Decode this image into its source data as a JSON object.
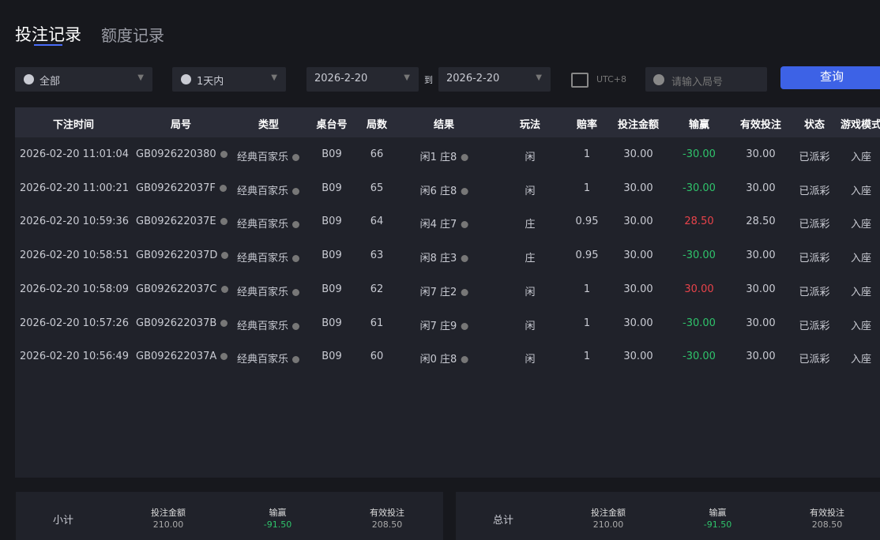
{
  "tabs": [
    "投注记录",
    "额度记录"
  ],
  "filters": {
    "type": "全部",
    "period": "1天内",
    "date_from": "2026-2-20",
    "to": "到",
    "date_to": "2026-2-20",
    "timezone": "UTC+8",
    "round_placeholder": "请输入局号",
    "query": "查询"
  },
  "table": {
    "columns": [
      "下注时间",
      "局号",
      "类型",
      "桌台号",
      "局数",
      "结果",
      "玩法",
      "赔率",
      "投注金额",
      "输赢",
      "有效投注",
      "状态",
      "游戏模式"
    ],
    "rows": [
      [
        "2026-02-20 11:01:04",
        "GB0926220380",
        "经典百家乐",
        "B09",
        "66",
        "闲1 庄8",
        "闲",
        "1",
        "30.00",
        "-30.00",
        "30.00",
        "已派彩",
        "入座"
      ],
      [
        "2026-02-20 11:00:21",
        "GB092622037F",
        "经典百家乐",
        "B09",
        "65",
        "闲6 庄8",
        "闲",
        "1",
        "30.00",
        "-30.00",
        "30.00",
        "已派彩",
        "入座"
      ],
      [
        "2026-02-20 10:59:36",
        "GB092622037E",
        "经典百家乐",
        "B09",
        "64",
        "闲4 庄7",
        "庄",
        "0.95",
        "30.00",
        "28.50",
        "28.50",
        "已派彩",
        "入座"
      ],
      [
        "2026-02-20 10:58:51",
        "GB092622037D",
        "经典百家乐",
        "B09",
        "63",
        "闲8 庄3",
        "庄",
        "0.95",
        "30.00",
        "-30.00",
        "30.00",
        "已派彩",
        "入座"
      ],
      [
        "2026-02-20 10:58:09",
        "GB092622037C",
        "经典百家乐",
        "B09",
        "62",
        "闲7 庄2",
        "闲",
        "1",
        "30.00",
        "30.00",
        "30.00",
        "已派彩",
        "入座"
      ],
      [
        "2026-02-20 10:57:26",
        "GB092622037B",
        "经典百家乐",
        "B09",
        "61",
        "闲7 庄9",
        "闲",
        "1",
        "30.00",
        "-30.00",
        "30.00",
        "已派彩",
        "入座"
      ],
      [
        "2026-02-20 10:56:49",
        "GB092622037A",
        "经典百家乐",
        "B09",
        "60",
        "闲0 庄8",
        "闲",
        "1",
        "30.00",
        "-30.00",
        "30.00",
        "已派彩",
        "入座"
      ]
    ]
  },
  "summary": [
    {
      "label": "小计",
      "items": [
        {
          "label": "投注金额",
          "value": "210.00"
        },
        {
          "label": "输赢",
          "value": "-91.50"
        },
        {
          "label": "有效投注",
          "value": "208.50"
        }
      ]
    },
    {
      "label": "总计",
      "items": [
        {
          "label": "投注金额",
          "value": "210.00"
        },
        {
          "label": "输赢",
          "value": "-91.50"
        },
        {
          "label": "有效投注",
          "value": "208.50"
        }
      ]
    }
  ]
}
